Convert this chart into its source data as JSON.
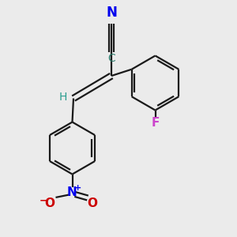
{
  "bg_color": "#ebebeb",
  "bond_color": "#1a1a1a",
  "cn_color": "#0000ee",
  "h_color": "#2a9d8f",
  "f_color": "#cc44cc",
  "n_color": "#0000ee",
  "o_color": "#cc0000",
  "c_color": "#2a7a6a",
  "line_width": 1.6,
  "figsize": [
    3.0,
    3.0
  ],
  "dpi": 100,
  "xlim": [
    0,
    10
  ],
  "ylim": [
    0,
    10
  ]
}
